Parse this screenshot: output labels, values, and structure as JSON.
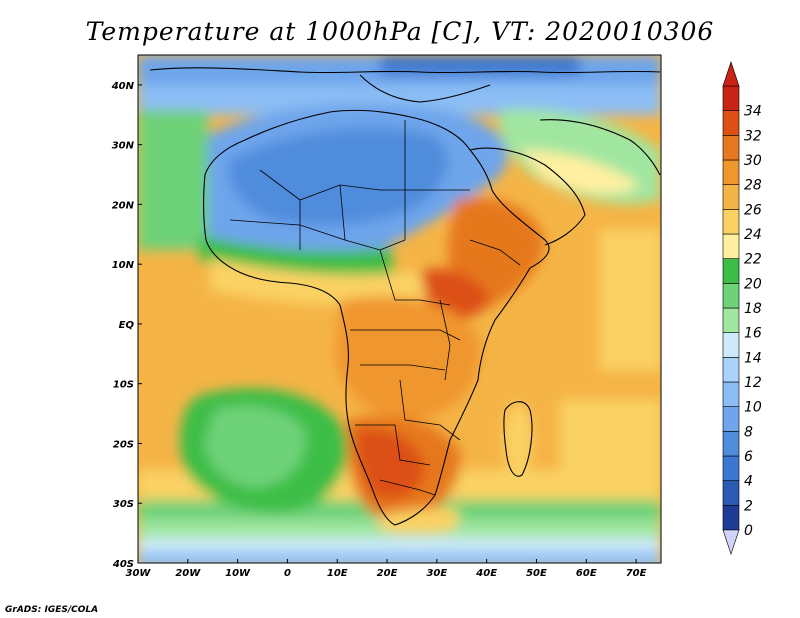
{
  "title": "Temperature at 1000hPa [C], VT: 2020010306",
  "credit": "GrADS: IGES/COLA",
  "map": {
    "lon_range": [
      -30,
      75
    ],
    "lat_range": [
      -40,
      45
    ],
    "lon_ticks": [
      {
        "value": -30,
        "label": "30W"
      },
      {
        "value": -20,
        "label": "20W"
      },
      {
        "value": -10,
        "label": "10W"
      },
      {
        "value": 0,
        "label": "0"
      },
      {
        "value": 10,
        "label": "10E"
      },
      {
        "value": 20,
        "label": "20E"
      },
      {
        "value": 30,
        "label": "30E"
      },
      {
        "value": 40,
        "label": "40E"
      },
      {
        "value": 50,
        "label": "50E"
      },
      {
        "value": 60,
        "label": "60E"
      },
      {
        "value": 70,
        "label": "70E"
      }
    ],
    "lat_ticks": [
      {
        "value": 40,
        "label": "40N"
      },
      {
        "value": 30,
        "label": "30N"
      },
      {
        "value": 20,
        "label": "20N"
      },
      {
        "value": 10,
        "label": "10N"
      },
      {
        "value": 0,
        "label": "EQ"
      },
      {
        "value": -10,
        "label": "10S"
      },
      {
        "value": -20,
        "label": "20S"
      },
      {
        "value": -30,
        "label": "30S"
      },
      {
        "value": -40,
        "label": "40S"
      }
    ]
  },
  "colorbar": {
    "levels": [
      0,
      2,
      4,
      6,
      8,
      10,
      12,
      14,
      16,
      18,
      20,
      22,
      24,
      26,
      28,
      30,
      32,
      34
    ],
    "colors": [
      "#1e3c96",
      "#2a5ab4",
      "#3c78d2",
      "#508cdc",
      "#6ea5eb",
      "#8cbef5",
      "#aad2fa",
      "#cdeafa",
      "#a0e6a0",
      "#6ed278",
      "#3cbe46",
      "#fff0a0",
      "#fad264",
      "#f5b446",
      "#f0962d",
      "#e6781e",
      "#dc5014",
      "#c82314"
    ],
    "under_color": "#d2d2fa",
    "over_color": "#c82314"
  }
}
